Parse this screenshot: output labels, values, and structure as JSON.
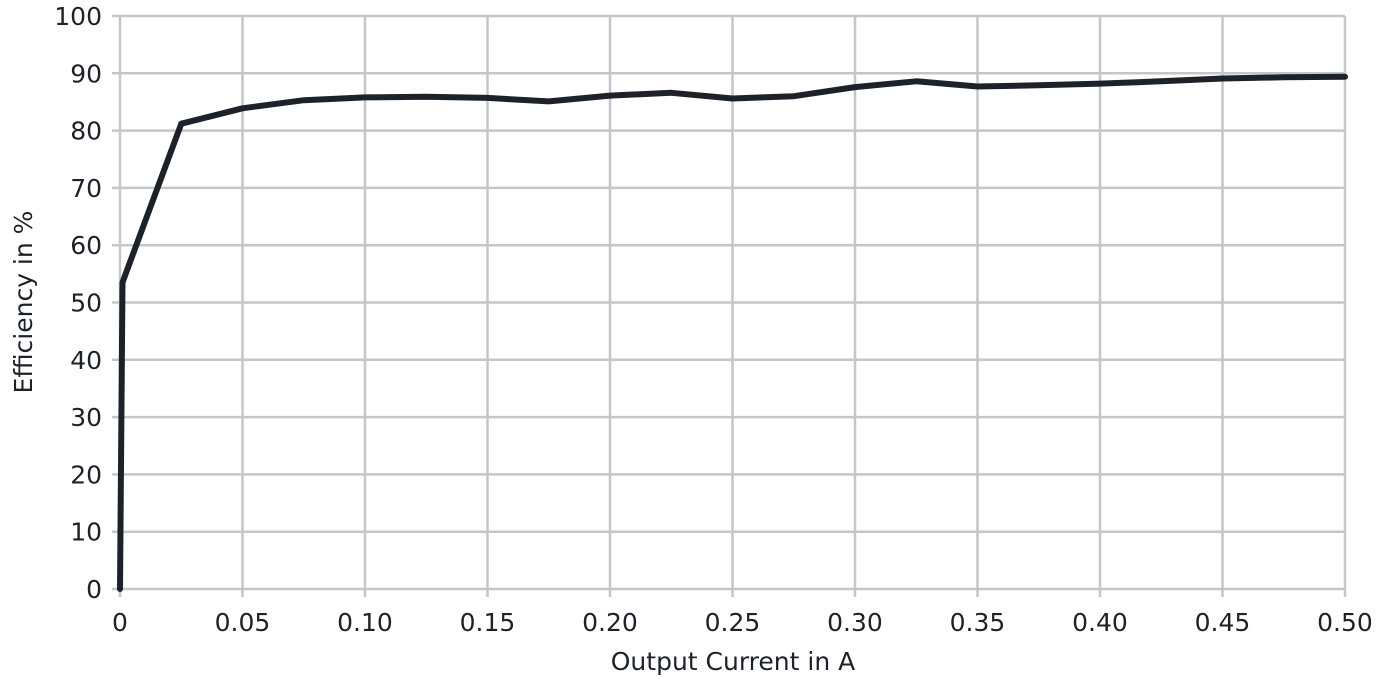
{
  "chart_data": {
    "type": "line",
    "xlabel": "Output Current in A",
    "ylabel": "Efficiency in %",
    "xlim": [
      0,
      0.5
    ],
    "ylim": [
      0,
      100
    ],
    "grid": true,
    "x_ticks": [
      "0",
      "0.05",
      "0.10",
      "0.15",
      "0.20",
      "0.25",
      "0.30",
      "0.35",
      "0.40",
      "0.45",
      "0.50"
    ],
    "y_ticks": [
      "0",
      "10",
      "20",
      "30",
      "40",
      "50",
      "60",
      "70",
      "80",
      "90",
      "100"
    ],
    "colors": {
      "line": "#1d2229",
      "grid": "#c4c7c9",
      "text": "#1d2229"
    },
    "series": [
      {
        "x": [
          0,
          0.001,
          0.025,
          0.05,
          0.075,
          0.1,
          0.125,
          0.15,
          0.175,
          0.2,
          0.225,
          0.25,
          0.275,
          0.3,
          0.325,
          0.35,
          0.375,
          0.4,
          0.425,
          0.45,
          0.475,
          0.5
        ],
        "y": [
          0,
          53.5,
          81.2,
          83.9,
          85.3,
          85.8,
          85.9,
          85.7,
          85.1,
          86.1,
          86.6,
          85.6,
          86.0,
          87.6,
          88.6,
          87.7,
          87.9,
          88.2,
          88.6,
          89.1,
          89.3,
          89.4
        ]
      }
    ]
  }
}
